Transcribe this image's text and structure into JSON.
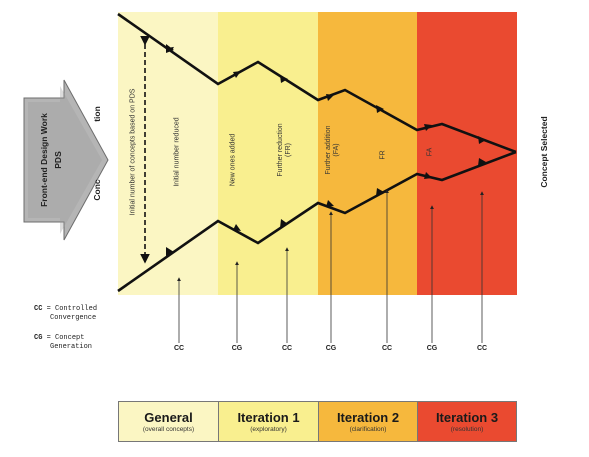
{
  "colors": {
    "general": "#fbf6c3",
    "iteration1": "#f9ef8f",
    "iteration2": "#f6b83d",
    "iteration3": "#ea4a30"
  },
  "arrow_block": {
    "main_label": "Front-end Design Work",
    "sub_label": "PDS",
    "partial_right_top": "tion",
    "partial_right_bottom": "Conc"
  },
  "band_labels": {
    "initial_number": "Initial number of concepts based on PDS",
    "initial_reduced": "Initial number reduced",
    "new_added": "New ones added",
    "further_reduction": "Further reduction (FR)",
    "further_addition": "Further addition (FA)",
    "fr": "FR",
    "fa": "FA"
  },
  "concept_selected": "Concept Selected",
  "legend": {
    "cc_key": "CC",
    "cc_desc_1": "= Controlled",
    "cc_desc_2": "Convergence",
    "cg_key": "CG",
    "cg_desc_1": "= Concept",
    "cg_desc_2": "Generation"
  },
  "pointer_labels": [
    "CC",
    "CG",
    "CC",
    "CG",
    "CC",
    "CG",
    "CC"
  ],
  "stages": [
    {
      "title": "General",
      "subtitle": "(overall concepts)"
    },
    {
      "title": "Iteration 1",
      "subtitle": "(exploratory)"
    },
    {
      "title": "Iteration 2",
      "subtitle": "(clarification)"
    },
    {
      "title": "Iteration 3",
      "subtitle": "(resolution)"
    }
  ]
}
